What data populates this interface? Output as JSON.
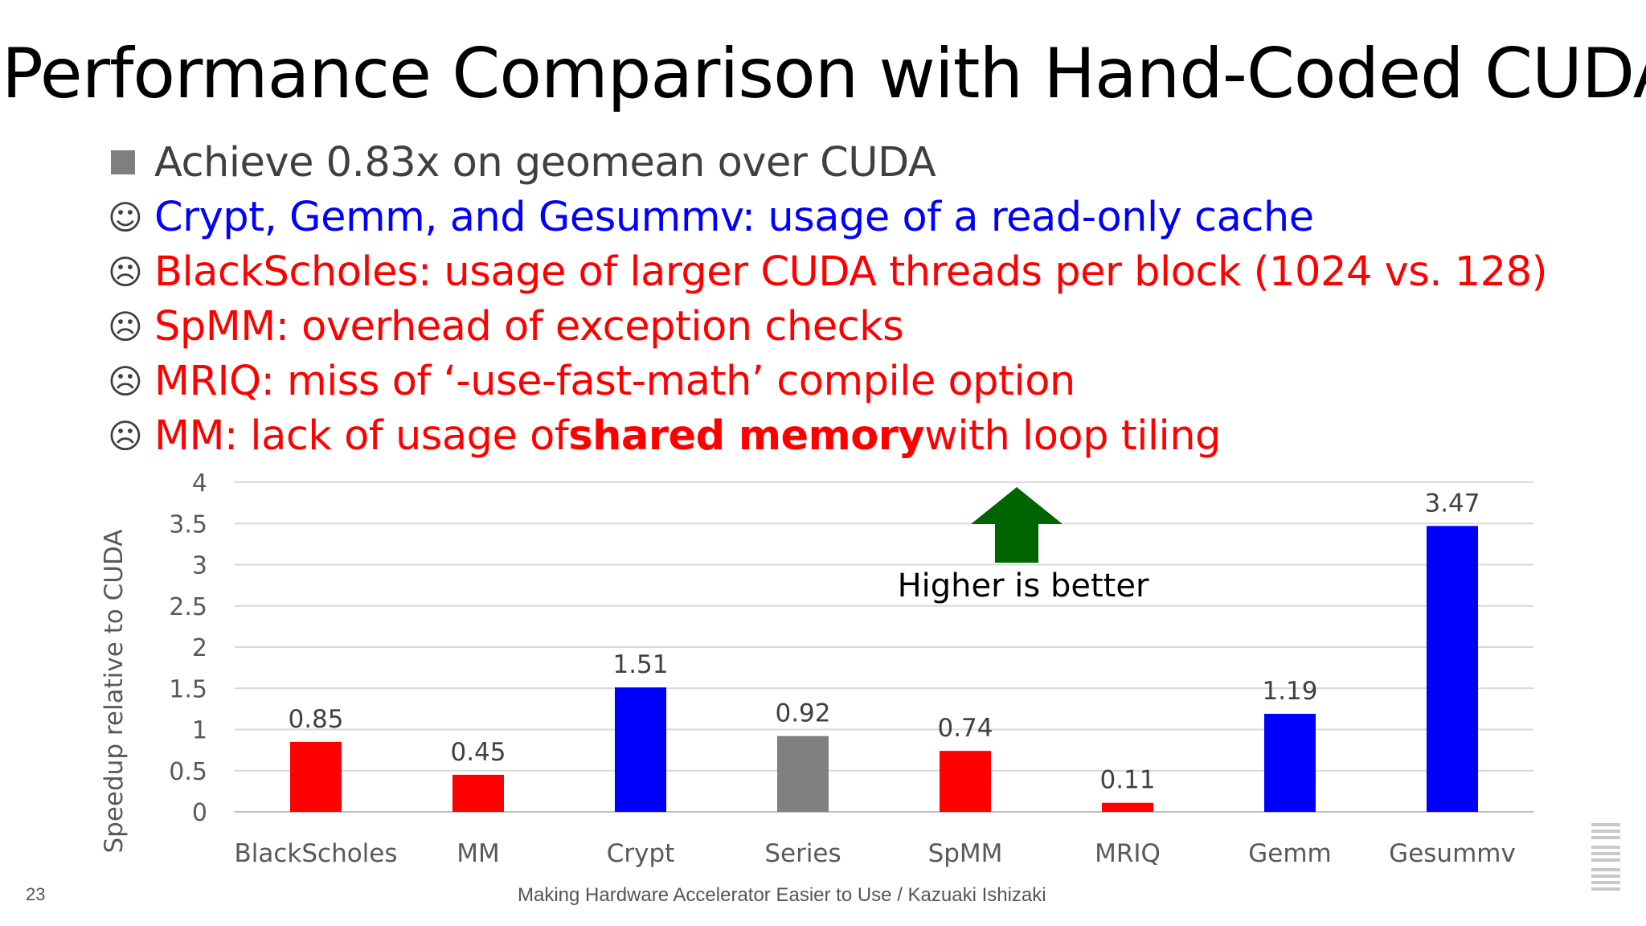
{
  "slide": {
    "title": "Performance Comparison with Hand-Coded CUDA",
    "bullets": [
      {
        "marker": "square",
        "text": "Achieve 0.83x on geomean over CUDA"
      },
      {
        "marker": "☺",
        "text": "Crypt, Gemm, and Gesummv: usage of a read-only cache"
      },
      {
        "marker": "☹",
        "text": "BlackScholes: usage of larger CUDA threads per block (1024 vs. 128)"
      },
      {
        "marker": "☹",
        "text": "SpMM: overhead of exception checks"
      },
      {
        "marker": "☹",
        "text": "MRIQ: miss of ‘-use-fast-math’ compile option"
      },
      {
        "marker": "☹",
        "pre": "MM: lack of usage of ",
        "bold": "shared memory",
        "post": " with loop tiling"
      }
    ],
    "slide_number": "23",
    "footer": "Making Hardware Accelerator Easier to Use / Kazuaki Ishizaki",
    "colors": {
      "blue": "#0000ff",
      "red": "#ff0000",
      "gray_bar": "#808080",
      "arrow": "#006400",
      "text_gray": "#404040"
    }
  },
  "chart_data": {
    "type": "bar",
    "categories": [
      "BlackScholes",
      "MM",
      "Crypt",
      "Series",
      "SpMM",
      "MRIQ",
      "Gemm",
      "Gesummv"
    ],
    "values": [
      0.85,
      0.45,
      1.51,
      0.92,
      0.74,
      0.11,
      1.19,
      3.47
    ],
    "data_labels": [
      "0.85",
      "0.45",
      "1.51",
      "0.92",
      "0.74",
      "0.11",
      "1.19",
      "3.47"
    ],
    "bar_colors": [
      "#ff0000",
      "#ff0000",
      "#0000ff",
      "#808080",
      "#ff0000",
      "#ff0000",
      "#0000ff",
      "#0000ff"
    ],
    "ylabel": "Speedup relative to CUDA",
    "ylim": [
      0,
      4
    ],
    "yticks": [
      "0",
      "0.5",
      "1",
      "1.5",
      "2",
      "2.5",
      "3",
      "3.5",
      "4"
    ],
    "grid": true,
    "annotation": "Higher is better"
  }
}
